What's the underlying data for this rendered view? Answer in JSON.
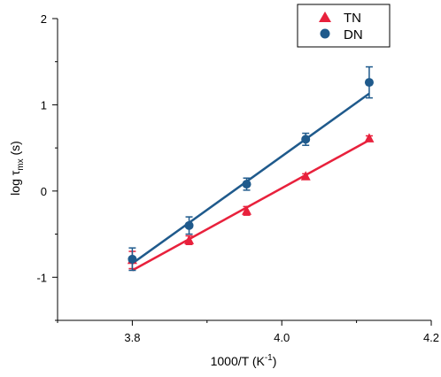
{
  "chart_data": {
    "type": "scatter",
    "xlabel": "1000/T (K",
    "xlabel_sup": "-1",
    "xlabel_tail": ")",
    "ylabel_main": "log τ",
    "ylabel_sub": "mx",
    "ylabel_tail": " (s)",
    "xlim": [
      3.7,
      4.2
    ],
    "ylim": [
      -1.5,
      2.0
    ],
    "xticks": [
      3.8,
      4.0,
      4.2
    ],
    "xtick_labels": [
      "3.8",
      "4.0",
      "4.2"
    ],
    "yticks": [
      -1,
      0,
      1,
      2
    ],
    "ytick_labels": [
      "-1",
      "0",
      "1",
      "2"
    ],
    "legend_position": "top-right",
    "series": [
      {
        "name": "TN",
        "marker": "triangle",
        "color": "#e8213c",
        "x": [
          3.8,
          3.876,
          3.953,
          4.032,
          4.117
        ],
        "y": [
          -0.8,
          -0.57,
          -0.23,
          0.17,
          0.61
        ],
        "yerr": [
          0.1,
          0.05,
          0.05,
          0.03,
          0.03
        ],
        "fit": {
          "x": [
            3.8,
            4.117
          ],
          "y": [
            -0.92,
            0.59
          ]
        }
      },
      {
        "name": "DN",
        "marker": "circle",
        "color": "#1f5a8c",
        "x": [
          3.8,
          3.876,
          3.953,
          4.032,
          4.117
        ],
        "y": [
          -0.79,
          -0.4,
          0.08,
          0.6,
          1.26
        ],
        "yerr": [
          0.13,
          0.1,
          0.07,
          0.07,
          0.18
        ],
        "fit": {
          "x": [
            3.8,
            4.117
          ],
          "y": [
            -0.84,
            1.13
          ]
        }
      }
    ]
  }
}
